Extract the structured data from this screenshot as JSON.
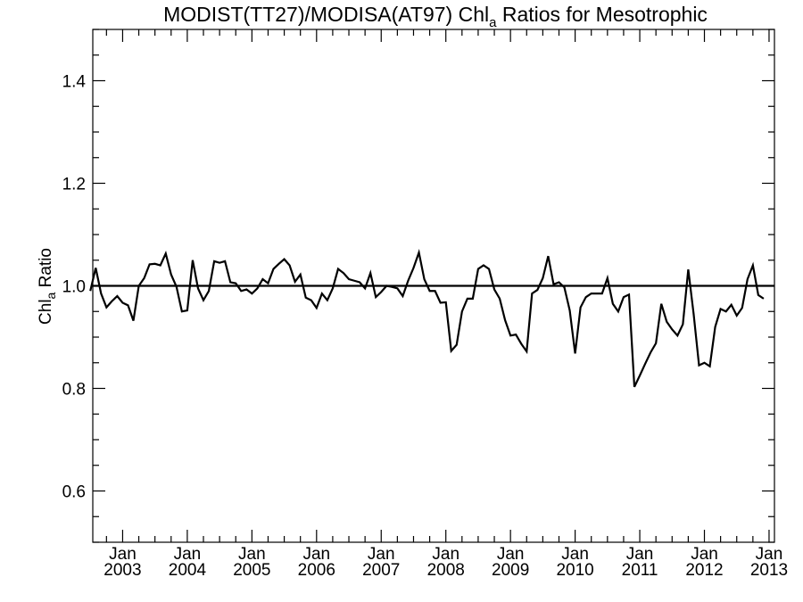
{
  "chart_data": {
    "type": "line",
    "title_main": "MODIST(TT27)/MODISA(AT97)  Chl",
    "title_sub": "a",
    "title_rest": " Ratios for Mesotrophic",
    "ylabel_main": "Chl",
    "ylabel_sub": "a",
    "ylabel_rest": " Ratio",
    "ylim": [
      0.5,
      1.5
    ],
    "yticks": [
      0.6,
      0.8,
      1.0,
      1.2,
      1.4
    ],
    "ytick_labels": [
      "0.6",
      "0.8",
      "1.0",
      "1.2",
      "1.4"
    ],
    "xlim": [
      "2002-07-15",
      "2013-02-01"
    ],
    "xticks": [
      {
        "date": "2003-01-01",
        "month": "Jan",
        "year": "2003"
      },
      {
        "date": "2004-01-01",
        "month": "Jan",
        "year": "2004"
      },
      {
        "date": "2005-01-01",
        "month": "Jan",
        "year": "2005"
      },
      {
        "date": "2006-01-01",
        "month": "Jan",
        "year": "2006"
      },
      {
        "date": "2007-01-01",
        "month": "Jan",
        "year": "2007"
      },
      {
        "date": "2008-01-01",
        "month": "Jan",
        "year": "2008"
      },
      {
        "date": "2009-01-01",
        "month": "Jan",
        "year": "2009"
      },
      {
        "date": "2010-01-01",
        "month": "Jan",
        "year": "2010"
      },
      {
        "date": "2011-01-01",
        "month": "Jan",
        "year": "2011"
      },
      {
        "date": "2012-01-01",
        "month": "Jan",
        "year": "2012"
      },
      {
        "date": "2013-01-01",
        "month": "Jan",
        "year": "2013"
      }
    ],
    "reference_line": 1.0,
    "grid": false,
    "line_color": "#000000",
    "series": [
      {
        "x_start": "2002-07",
        "x_step": "1 month",
        "values": [
          0.99,
          1.035,
          0.985,
          0.958,
          0.97,
          0.98,
          0.967,
          0.962,
          0.932,
          1.0,
          1.015,
          1.042,
          1.043,
          1.04,
          1.063,
          1.022,
          0.998,
          0.95,
          0.952,
          1.05,
          0.995,
          0.972,
          0.99,
          1.048,
          1.045,
          1.048,
          1.007,
          1.005,
          0.99,
          0.993,
          0.985,
          0.995,
          1.013,
          1.005,
          1.033,
          1.043,
          1.052,
          1.04,
          1.008,
          1.022,
          0.977,
          0.972,
          0.957,
          0.985,
          0.972,
          0.995,
          1.033,
          1.025,
          1.013,
          1.01,
          1.007,
          0.995,
          1.025,
          0.978,
          0.988,
          1.0,
          0.998,
          0.995,
          0.98,
          1.01,
          1.035,
          1.065,
          1.013,
          0.99,
          0.99,
          0.967,
          0.968,
          0.873,
          0.885,
          0.95,
          0.975,
          0.975,
          1.033,
          1.04,
          1.033,
          0.993,
          0.975,
          0.933,
          0.903,
          0.905,
          0.887,
          0.872,
          0.985,
          0.992,
          1.015,
          1.058,
          1.003,
          1.007,
          0.997,
          0.952,
          0.868,
          0.958,
          0.978,
          0.985,
          0.985,
          0.985,
          1.015,
          0.965,
          0.95,
          0.978,
          0.983,
          0.803,
          0.825,
          0.848,
          0.87,
          0.888,
          0.965,
          0.93,
          0.915,
          0.903,
          0.925,
          1.032,
          0.945,
          0.845,
          0.85,
          0.843,
          0.92,
          0.955,
          0.95,
          0.963,
          0.942,
          0.957,
          1.013,
          1.04,
          0.982,
          0.975
        ]
      }
    ]
  }
}
